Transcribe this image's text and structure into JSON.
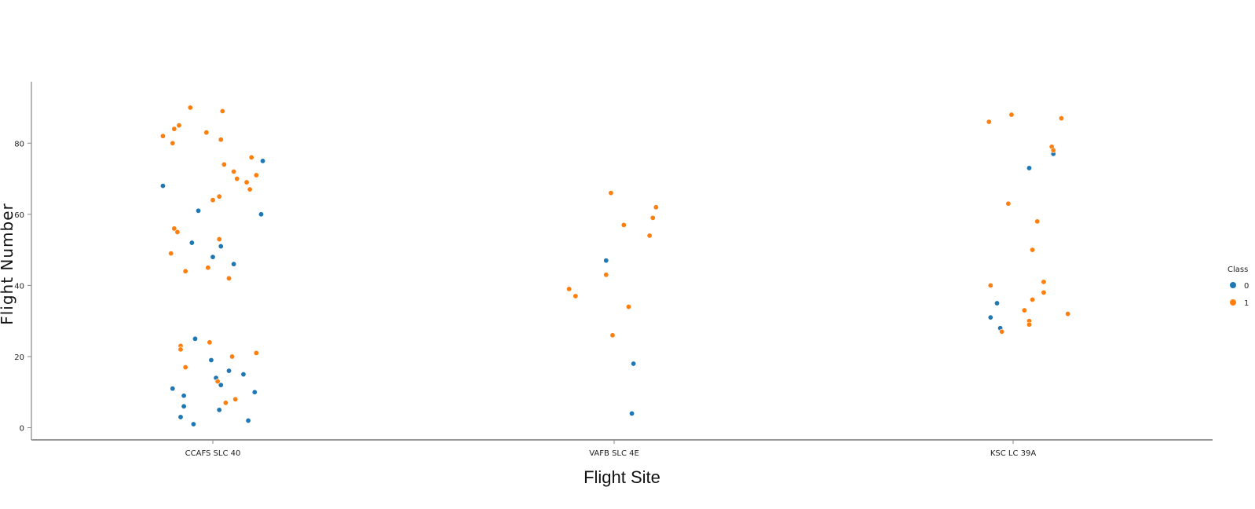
{
  "chart_data": {
    "type": "scatter",
    "title": "",
    "xlabel": "Flight Site",
    "ylabel": "Flight Number",
    "categories": [
      "CCAFS SLC 40",
      "VAFB SLC 4E",
      "KSC LC 39A"
    ],
    "ylim": [
      0,
      90
    ],
    "yticks": [
      "0",
      "20",
      "40",
      "60",
      "80"
    ],
    "grid": false,
    "legend": {
      "title": "Class",
      "placement": "right",
      "entries": [
        {
          "label": "0",
          "color": "#1f77b4"
        },
        {
          "label": "1",
          "color": "#ff7f0e"
        }
      ]
    },
    "series": [
      {
        "name": "0",
        "color": "#1f77b4",
        "points": [
          {
            "site": "CCAFS SLC 40",
            "jitter": -0.31,
            "y": 68
          },
          {
            "site": "CCAFS SLC 40",
            "jitter": -0.09,
            "y": 61
          },
          {
            "site": "CCAFS SLC 40",
            "jitter": 0.31,
            "y": 75
          },
          {
            "site": "CCAFS SLC 40",
            "jitter": 0.3,
            "y": 60
          },
          {
            "site": "CCAFS SLC 40",
            "jitter": -0.13,
            "y": 52
          },
          {
            "site": "CCAFS SLC 40",
            "jitter": 0.05,
            "y": 51
          },
          {
            "site": "CCAFS SLC 40",
            "jitter": 0.0,
            "y": 48
          },
          {
            "site": "CCAFS SLC 40",
            "jitter": 0.13,
            "y": 46
          },
          {
            "site": "CCAFS SLC 40",
            "jitter": -0.11,
            "y": 25
          },
          {
            "site": "CCAFS SLC 40",
            "jitter": -0.01,
            "y": 19
          },
          {
            "site": "CCAFS SLC 40",
            "jitter": 0.1,
            "y": 16
          },
          {
            "site": "CCAFS SLC 40",
            "jitter": 0.19,
            "y": 15
          },
          {
            "site": "CCAFS SLC 40",
            "jitter": 0.02,
            "y": 14
          },
          {
            "site": "CCAFS SLC 40",
            "jitter": 0.05,
            "y": 12
          },
          {
            "site": "CCAFS SLC 40",
            "jitter": -0.25,
            "y": 11
          },
          {
            "site": "CCAFS SLC 40",
            "jitter": 0.26,
            "y": 10
          },
          {
            "site": "CCAFS SLC 40",
            "jitter": -0.18,
            "y": 9
          },
          {
            "site": "CCAFS SLC 40",
            "jitter": -0.18,
            "y": 6
          },
          {
            "site": "CCAFS SLC 40",
            "jitter": 0.04,
            "y": 5
          },
          {
            "site": "CCAFS SLC 40",
            "jitter": -0.2,
            "y": 3
          },
          {
            "site": "CCAFS SLC 40",
            "jitter": 0.22,
            "y": 2
          },
          {
            "site": "CCAFS SLC 40",
            "jitter": -0.12,
            "y": 1
          },
          {
            "site": "VAFB SLC 4E",
            "jitter": -0.05,
            "y": 47
          },
          {
            "site": "VAFB SLC 4E",
            "jitter": 0.12,
            "y": 18
          },
          {
            "site": "VAFB SLC 4E",
            "jitter": 0.11,
            "y": 4
          },
          {
            "site": "KSC LC 39A",
            "jitter": 0.25,
            "y": 77
          },
          {
            "site": "KSC LC 39A",
            "jitter": 0.1,
            "y": 73
          },
          {
            "site": "KSC LC 39A",
            "jitter": -0.1,
            "y": 35
          },
          {
            "site": "KSC LC 39A",
            "jitter": -0.14,
            "y": 31
          },
          {
            "site": "KSC LC 39A",
            "jitter": -0.08,
            "y": 28
          }
        ]
      },
      {
        "name": "1",
        "color": "#ff7f0e",
        "points": [
          {
            "site": "CCAFS SLC 40",
            "jitter": -0.14,
            "y": 90
          },
          {
            "site": "CCAFS SLC 40",
            "jitter": 0.06,
            "y": 89
          },
          {
            "site": "CCAFS SLC 40",
            "jitter": -0.21,
            "y": 85
          },
          {
            "site": "CCAFS SLC 40",
            "jitter": -0.24,
            "y": 84
          },
          {
            "site": "CCAFS SLC 40",
            "jitter": -0.04,
            "y": 83
          },
          {
            "site": "CCAFS SLC 40",
            "jitter": -0.31,
            "y": 82
          },
          {
            "site": "CCAFS SLC 40",
            "jitter": 0.05,
            "y": 81
          },
          {
            "site": "CCAFS SLC 40",
            "jitter": -0.25,
            "y": 80
          },
          {
            "site": "CCAFS SLC 40",
            "jitter": 0.24,
            "y": 76
          },
          {
            "site": "CCAFS SLC 40",
            "jitter": 0.07,
            "y": 74
          },
          {
            "site": "CCAFS SLC 40",
            "jitter": 0.13,
            "y": 72
          },
          {
            "site": "CCAFS SLC 40",
            "jitter": 0.27,
            "y": 71
          },
          {
            "site": "CCAFS SLC 40",
            "jitter": 0.15,
            "y": 70
          },
          {
            "site": "CCAFS SLC 40",
            "jitter": 0.21,
            "y": 69
          },
          {
            "site": "CCAFS SLC 40",
            "jitter": 0.23,
            "y": 67
          },
          {
            "site": "CCAFS SLC 40",
            "jitter": 0.04,
            "y": 65
          },
          {
            "site": "CCAFS SLC 40",
            "jitter": 0.0,
            "y": 64
          },
          {
            "site": "CCAFS SLC 40",
            "jitter": -0.24,
            "y": 56
          },
          {
            "site": "CCAFS SLC 40",
            "jitter": -0.22,
            "y": 55
          },
          {
            "site": "CCAFS SLC 40",
            "jitter": 0.04,
            "y": 53
          },
          {
            "site": "CCAFS SLC 40",
            "jitter": -0.26,
            "y": 49
          },
          {
            "site": "CCAFS SLC 40",
            "jitter": -0.03,
            "y": 45
          },
          {
            "site": "CCAFS SLC 40",
            "jitter": -0.17,
            "y": 44
          },
          {
            "site": "CCAFS SLC 40",
            "jitter": 0.1,
            "y": 42
          },
          {
            "site": "CCAFS SLC 40",
            "jitter": -0.02,
            "y": 24
          },
          {
            "site": "CCAFS SLC 40",
            "jitter": -0.2,
            "y": 23
          },
          {
            "site": "CCAFS SLC 40",
            "jitter": -0.2,
            "y": 22
          },
          {
            "site": "CCAFS SLC 40",
            "jitter": 0.27,
            "y": 21
          },
          {
            "site": "CCAFS SLC 40",
            "jitter": 0.12,
            "y": 20
          },
          {
            "site": "CCAFS SLC 40",
            "jitter": -0.17,
            "y": 17
          },
          {
            "site": "CCAFS SLC 40",
            "jitter": 0.03,
            "y": 13
          },
          {
            "site": "CCAFS SLC 40",
            "jitter": 0.14,
            "y": 8
          },
          {
            "site": "CCAFS SLC 40",
            "jitter": 0.08,
            "y": 7
          },
          {
            "site": "VAFB SLC 4E",
            "jitter": -0.02,
            "y": 66
          },
          {
            "site": "VAFB SLC 4E",
            "jitter": 0.26,
            "y": 62
          },
          {
            "site": "VAFB SLC 4E",
            "jitter": 0.24,
            "y": 59
          },
          {
            "site": "VAFB SLC 4E",
            "jitter": 0.06,
            "y": 57
          },
          {
            "site": "VAFB SLC 4E",
            "jitter": 0.22,
            "y": 54
          },
          {
            "site": "VAFB SLC 4E",
            "jitter": -0.05,
            "y": 43
          },
          {
            "site": "VAFB SLC 4E",
            "jitter": -0.28,
            "y": 39
          },
          {
            "site": "VAFB SLC 4E",
            "jitter": -0.24,
            "y": 37
          },
          {
            "site": "VAFB SLC 4E",
            "jitter": 0.09,
            "y": 34
          },
          {
            "site": "VAFB SLC 4E",
            "jitter": -0.01,
            "y": 26
          },
          {
            "site": "KSC LC 39A",
            "jitter": -0.01,
            "y": 88
          },
          {
            "site": "KSC LC 39A",
            "jitter": 0.3,
            "y": 87
          },
          {
            "site": "KSC LC 39A",
            "jitter": -0.15,
            "y": 86
          },
          {
            "site": "KSC LC 39A",
            "jitter": 0.24,
            "y": 79
          },
          {
            "site": "KSC LC 39A",
            "jitter": 0.25,
            "y": 78
          },
          {
            "site": "KSC LC 39A",
            "jitter": -0.03,
            "y": 63
          },
          {
            "site": "KSC LC 39A",
            "jitter": 0.15,
            "y": 58
          },
          {
            "site": "KSC LC 39A",
            "jitter": 0.12,
            "y": 50
          },
          {
            "site": "KSC LC 39A",
            "jitter": 0.19,
            "y": 41
          },
          {
            "site": "KSC LC 39A",
            "jitter": -0.14,
            "y": 40
          },
          {
            "site": "KSC LC 39A",
            "jitter": 0.19,
            "y": 38
          },
          {
            "site": "KSC LC 39A",
            "jitter": 0.12,
            "y": 36
          },
          {
            "site": "KSC LC 39A",
            "jitter": 0.07,
            "y": 33
          },
          {
            "site": "KSC LC 39A",
            "jitter": 0.34,
            "y": 32
          },
          {
            "site": "KSC LC 39A",
            "jitter": 0.1,
            "y": 30
          },
          {
            "site": "KSC LC 39A",
            "jitter": 0.1,
            "y": 29
          },
          {
            "site": "KSC LC 39A",
            "jitter": -0.07,
            "y": 27
          }
        ]
      }
    ]
  }
}
